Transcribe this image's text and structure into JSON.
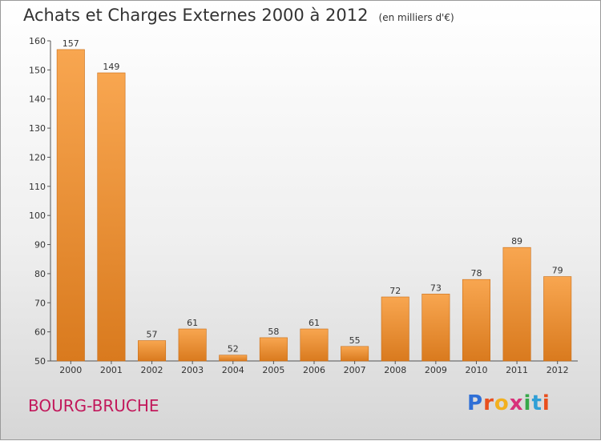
{
  "chart_data": {
    "type": "bar",
    "title": "Achats et Charges Externes 2000 à 2012",
    "subtitle": "(en milliers d'€)",
    "categories": [
      "2000",
      "2001",
      "2002",
      "2003",
      "2004",
      "2005",
      "2006",
      "2007",
      "2008",
      "2009",
      "2010",
      "2011",
      "2012"
    ],
    "values": [
      157,
      149,
      57,
      61,
      52,
      58,
      61,
      55,
      72,
      73,
      78,
      89,
      79
    ],
    "ylim": [
      50,
      160
    ],
    "yticks": [
      50,
      60,
      70,
      80,
      90,
      100,
      110,
      120,
      130,
      140,
      150,
      160
    ],
    "grid": false,
    "xlabel": "",
    "ylabel": "",
    "colors": {
      "bar_light": "#f8a650",
      "bar_dark": "#d97a1e",
      "axis": "#555555",
      "text": "#333333"
    }
  },
  "location": "BOURG-BRUCHE",
  "logo": {
    "letters": [
      "P",
      "r",
      "o",
      "x",
      "i",
      "t",
      "i"
    ]
  }
}
